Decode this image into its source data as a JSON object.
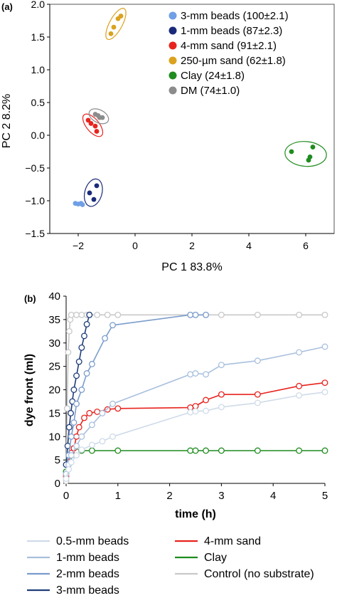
{
  "chart_data": [
    {
      "type": "scatter",
      "panel_label": "(a)",
      "xlabel": "PC 1 83.8%",
      "ylabel": "PC 2 8.2%",
      "xlim": [
        -3,
        7
      ],
      "ylim": [
        -1.5,
        2.0
      ],
      "xticks": [
        "−2",
        "0",
        "2",
        "4",
        "6"
      ],
      "yticks": [
        "2.0",
        "1.5",
        "1.0",
        "0.5",
        "0.0",
        "−0.5",
        "−1.0",
        "−1.5"
      ],
      "grid": false,
      "legend_position": "top-right",
      "series": [
        {
          "name": "3-mm beads (100±2.1)",
          "color": "#6f9fe6",
          "ellipse": false,
          "points": [
            [
              -2.1,
              -1.04
            ],
            [
              -2.0,
              -1.05
            ],
            [
              -1.9,
              -1.04
            ],
            [
              -1.85,
              -1.06
            ]
          ]
        },
        {
          "name": "1-mm beads (87±2.3)",
          "color": "#1a2a7a",
          "ellipse": true,
          "points": [
            [
              -1.6,
              -0.88
            ],
            [
              -1.45,
              -0.98
            ],
            [
              -1.35,
              -0.77
            ]
          ]
        },
        {
          "name": "4-mm sand (91±2.1)",
          "color": "#e8231e",
          "ellipse": true,
          "points": [
            [
              -1.65,
              0.23
            ],
            [
              -1.55,
              0.18
            ],
            [
              -1.4,
              0.14
            ],
            [
              -1.35,
              0.06
            ]
          ]
        },
        {
          "name": "250-µm sand (62±1.8)",
          "color": "#daa21e",
          "ellipse": true,
          "points": [
            [
              -0.85,
              1.55
            ],
            [
              -0.75,
              1.65
            ],
            [
              -0.6,
              1.78
            ],
            [
              -0.5,
              1.82
            ]
          ]
        },
        {
          "name": "Clay (24±1.8)",
          "color": "#1e8c1e",
          "ellipse": true,
          "points": [
            [
              5.5,
              -0.25
            ],
            [
              6.1,
              -0.38
            ],
            [
              6.15,
              -0.33
            ],
            [
              6.25,
              -0.18
            ]
          ]
        },
        {
          "name": "DM (74±1.0)",
          "color": "#8c8c8c",
          "ellipse": true,
          "points": [
            [
              -1.4,
              0.32
            ],
            [
              -1.3,
              0.3
            ],
            [
              -1.25,
              0.27
            ],
            [
              -1.15,
              0.27
            ]
          ]
        }
      ]
    },
    {
      "type": "line",
      "panel_label": "(b)",
      "xlabel": "time (h)",
      "ylabel": "dye front (ml)",
      "xlim": [
        0,
        5
      ],
      "ylim": [
        0,
        40
      ],
      "xticks": [
        "0",
        "1",
        "2",
        "3",
        "4",
        "5"
      ],
      "yticks": [
        "0",
        "5",
        "10",
        "15",
        "20",
        "25",
        "30",
        "35",
        "40"
      ],
      "grid": false,
      "legend_position": "bottom",
      "series": [
        {
          "name": "0.5-mm beads",
          "color": "#cfdbe9",
          "points": [
            [
              0,
              1
            ],
            [
              0.05,
              3
            ],
            [
              0.1,
              4.5
            ],
            [
              0.2,
              6
            ],
            [
              0.3,
              7.2
            ],
            [
              0.5,
              8.2
            ],
            [
              0.7,
              9
            ],
            [
              0.9,
              10
            ],
            [
              2.4,
              15.2
            ],
            [
              2.5,
              15.4
            ],
            [
              2.7,
              15.5
            ],
            [
              3,
              16.3
            ],
            [
              3.7,
              17.2
            ],
            [
              4.5,
              18.8
            ],
            [
              5,
              19.5
            ]
          ]
        },
        {
          "name": "1-mm beads",
          "color": "#a9c0dd",
          "points": [
            [
              0,
              2
            ],
            [
              0.05,
              4
            ],
            [
              0.1,
              6
            ],
            [
              0.2,
              8
            ],
            [
              0.3,
              10
            ],
            [
              0.5,
              12.5
            ],
            [
              0.7,
              15
            ],
            [
              0.9,
              17
            ],
            [
              2.4,
              23.3
            ],
            [
              2.5,
              23.5
            ],
            [
              2.7,
              23.3
            ],
            [
              3,
              25.3
            ],
            [
              3.7,
              26.2
            ],
            [
              4.5,
              28
            ],
            [
              5,
              29.2
            ]
          ]
        },
        {
          "name": "2-mm beads",
          "color": "#7b9dcc",
          "points": [
            [
              0,
              2
            ],
            [
              0.05,
              6
            ],
            [
              0.1,
              10
            ],
            [
              0.15,
              13
            ],
            [
              0.2,
              17
            ],
            [
              0.3,
              20
            ],
            [
              0.4,
              23.5
            ],
            [
              0.5,
              25.5
            ],
            [
              0.75,
              31
            ],
            [
              0.9,
              33.8
            ],
            [
              2.4,
              36
            ],
            [
              2.5,
              36
            ],
            [
              2.7,
              36
            ]
          ]
        },
        {
          "name": "3-mm beads",
          "color": "#1f3d7a",
          "points": [
            [
              0,
              4
            ],
            [
              0.03,
              8
            ],
            [
              0.06,
              12
            ],
            [
              0.09,
              15
            ],
            [
              0.12,
              17.5
            ],
            [
              0.15,
              20
            ],
            [
              0.2,
              23
            ],
            [
              0.25,
              26
            ],
            [
              0.3,
              29
            ],
            [
              0.35,
              31.5
            ],
            [
              0.4,
              34
            ],
            [
              0.45,
              36
            ]
          ]
        },
        {
          "name": "4-mm sand",
          "color": "#e8231e",
          "points": [
            [
              0,
              1.5
            ],
            [
              0.05,
              4.5
            ],
            [
              0.1,
              6.5
            ],
            [
              0.15,
              7.5
            ],
            [
              0.2,
              10
            ],
            [
              0.25,
              12
            ],
            [
              0.35,
              14
            ],
            [
              0.45,
              15
            ],
            [
              0.6,
              15.3
            ],
            [
              0.8,
              15.8
            ],
            [
              1,
              16
            ],
            [
              2.4,
              16.2
            ],
            [
              2.5,
              16.5
            ],
            [
              2.7,
              17.8
            ],
            [
              3,
              19
            ],
            [
              3.7,
              19
            ],
            [
              4.5,
              20.8
            ],
            [
              5,
              21.5
            ]
          ]
        },
        {
          "name": "Clay",
          "color": "#1e8c1e",
          "points": [
            [
              0,
              2.5
            ],
            [
              0.05,
              5
            ],
            [
              0.1,
              6
            ],
            [
              0.15,
              6.5
            ],
            [
              0.2,
              6.8
            ],
            [
              0.3,
              7
            ],
            [
              0.5,
              7
            ],
            [
              1,
              7
            ],
            [
              2.4,
              7
            ],
            [
              2.5,
              7
            ],
            [
              2.7,
              7
            ],
            [
              3,
              7
            ],
            [
              3.7,
              7
            ],
            [
              4.5,
              7
            ],
            [
              5,
              7
            ]
          ]
        },
        {
          "name": "Control (no substrate)",
          "color": "#c8c8c8",
          "points": [
            [
              0,
              0.5
            ],
            [
              0.02,
              16
            ],
            [
              0.04,
              28
            ],
            [
              0.06,
              32.5
            ],
            [
              0.08,
              35
            ],
            [
              0.1,
              36
            ],
            [
              0.2,
              36
            ],
            [
              0.3,
              36
            ],
            [
              0.4,
              36
            ],
            [
              0.6,
              36
            ],
            [
              0.8,
              36
            ],
            [
              1,
              36
            ],
            [
              2.4,
              36
            ],
            [
              2.5,
              36
            ],
            [
              2.7,
              36
            ],
            [
              3,
              36
            ],
            [
              3.7,
              36
            ],
            [
              4.5,
              36
            ],
            [
              5,
              36
            ]
          ]
        }
      ]
    }
  ]
}
